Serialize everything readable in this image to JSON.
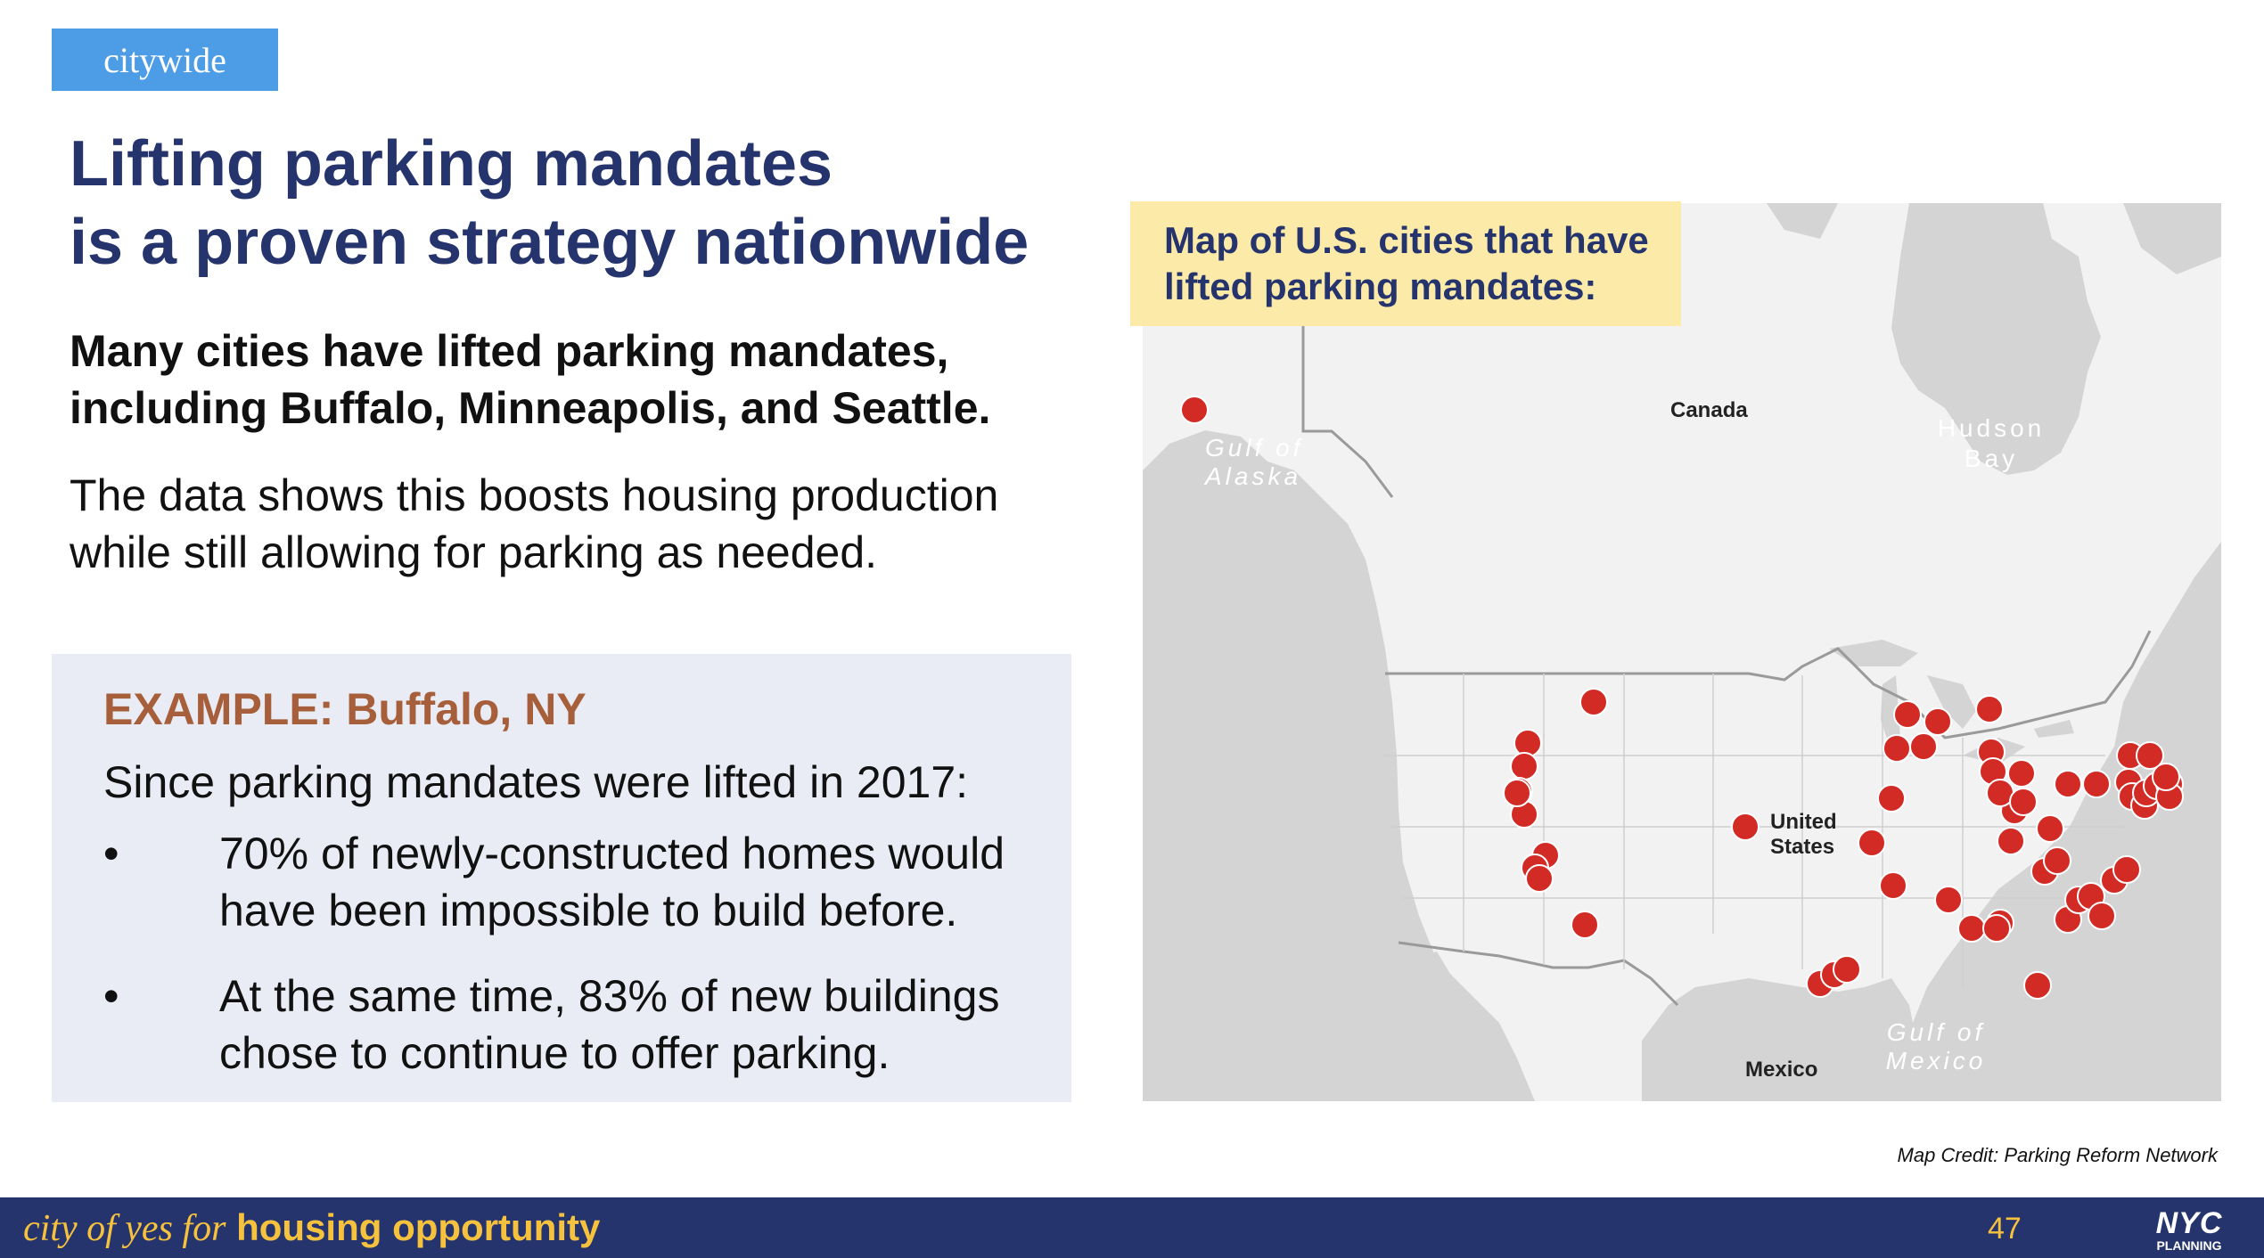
{
  "tag": "citywide",
  "title": {
    "line1": "Lifting parking mandates",
    "line2": "is a proven strategy nationwide"
  },
  "subtitle": {
    "line1": "Many cities have lifted parking mandates,",
    "line2": "including Buffalo, Minneapolis, and Seattle."
  },
  "body": {
    "line1": "The data shows this boosts housing production",
    "line2": "while still allowing for parking as needed."
  },
  "example": {
    "heading": "EXAMPLE: Buffalo, NY",
    "intro": "Since parking mandates were lifted in 2017:",
    "bullet_char": "•",
    "bullets": [
      {
        "line1": "70% of newly-constructed homes would",
        "line2": "have been impossible to build before."
      },
      {
        "line1": "At the same time, 83% of new buildings",
        "line2": "chose to continue to offer parking."
      }
    ]
  },
  "map": {
    "callout": {
      "line1": "Map of U.S. cities that have",
      "line2": "lifted parking mandates:"
    },
    "labels": {
      "canada": "Canada",
      "hudson_bay": {
        "line1": "Hudson",
        "line2": "Bay"
      },
      "gulf_alaska": {
        "line1": "Gulf of",
        "line2": "Alaska"
      },
      "united_states": {
        "line1": "United",
        "line2": "States"
      },
      "gulf_mexico": {
        "line1": "Gulf of",
        "line2": "Mexico"
      },
      "mexico": "Mexico"
    },
    "marker_color": "#d22a24",
    "land_color": "#f2f2f2",
    "water_color": "#d4d4d4"
  },
  "credit": "Map Credit: Parking Reform Network",
  "footer": {
    "brand_prefix": "city of yes for",
    "brand_bold": "housing opportunity",
    "page": "47",
    "logo_top": "NYC",
    "logo_bottom": "PLANNING"
  }
}
